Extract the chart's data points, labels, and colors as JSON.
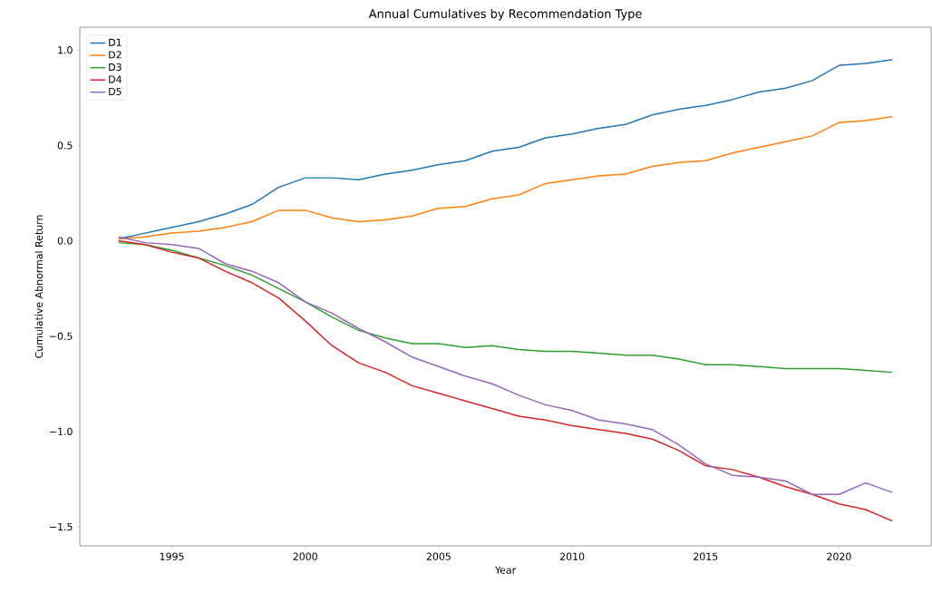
{
  "chart_data": {
    "type": "line",
    "title": "Annual Cumulatives by Recommendation Type",
    "xlabel": "Year",
    "ylabel": "Cumulative Abnormal Return",
    "x": [
      1993,
      1994,
      1995,
      1996,
      1997,
      1998,
      1999,
      2000,
      2001,
      2002,
      2003,
      2004,
      2005,
      2006,
      2007,
      2008,
      2009,
      2010,
      2011,
      2012,
      2013,
      2014,
      2015,
      2016,
      2017,
      2018,
      2019,
      2020,
      2021,
      2022
    ],
    "series": [
      {
        "name": "D1",
        "color": "#1f77b4",
        "values": [
          0.01,
          0.04,
          0.07,
          0.1,
          0.14,
          0.19,
          0.28,
          0.33,
          0.33,
          0.32,
          0.35,
          0.37,
          0.4,
          0.42,
          0.47,
          0.49,
          0.54,
          0.56,
          0.59,
          0.61,
          0.66,
          0.69,
          0.71,
          0.74,
          0.78,
          0.8,
          0.84,
          0.92,
          0.93,
          0.95
        ]
      },
      {
        "name": "D2",
        "color": "#ff7f0e",
        "values": [
          0.01,
          0.02,
          0.04,
          0.05,
          0.07,
          0.1,
          0.16,
          0.16,
          0.12,
          0.1,
          0.11,
          0.13,
          0.17,
          0.18,
          0.22,
          0.24,
          0.3,
          0.32,
          0.34,
          0.35,
          0.39,
          0.41,
          0.42,
          0.46,
          0.49,
          0.52,
          0.55,
          0.62,
          0.63,
          0.65
        ]
      },
      {
        "name": "D3",
        "color": "#2ca02c",
        "values": [
          -0.01,
          -0.02,
          -0.05,
          -0.09,
          -0.13,
          -0.18,
          -0.25,
          -0.32,
          -0.4,
          -0.47,
          -0.51,
          -0.54,
          -0.54,
          -0.56,
          -0.55,
          -0.57,
          -0.58,
          -0.58,
          -0.59,
          -0.6,
          -0.6,
          -0.62,
          -0.65,
          -0.65,
          -0.66,
          -0.67,
          -0.67,
          -0.67,
          -0.68,
          -0.69
        ]
      },
      {
        "name": "D4",
        "color": "#d62728",
        "values": [
          0.0,
          -0.02,
          -0.06,
          -0.09,
          -0.16,
          -0.22,
          -0.3,
          -0.42,
          -0.55,
          -0.64,
          -0.69,
          -0.76,
          -0.8,
          -0.84,
          -0.88,
          -0.92,
          -0.94,
          -0.97,
          -0.99,
          -1.01,
          -1.04,
          -1.1,
          -1.18,
          -1.2,
          -1.24,
          -1.29,
          -1.33,
          -1.38,
          -1.41,
          -1.47
        ]
      },
      {
        "name": "D5",
        "color": "#9467bd",
        "values": [
          0.02,
          -0.01,
          -0.02,
          -0.04,
          -0.12,
          -0.16,
          -0.22,
          -0.32,
          -0.38,
          -0.46,
          -0.53,
          -0.61,
          -0.66,
          -0.71,
          -0.75,
          -0.81,
          -0.86,
          -0.89,
          -0.94,
          -0.96,
          -0.99,
          -1.07,
          -1.17,
          -1.23,
          -1.24,
          -1.26,
          -1.33,
          -1.33,
          -1.27,
          -1.32
        ]
      }
    ],
    "xlim": [
      1991.55,
      2023.45
    ],
    "ylim": [
      -1.6,
      1.12
    ],
    "xticks": [
      1995,
      2000,
      2005,
      2010,
      2015,
      2020
    ],
    "yticks": [
      {
        "value": -1.5,
        "label": "−1.5"
      },
      {
        "value": -1.0,
        "label": "−1.0"
      },
      {
        "value": -0.5,
        "label": "−0.5"
      },
      {
        "value": 0.0,
        "label": "0.0"
      },
      {
        "value": 0.5,
        "label": "0.5"
      },
      {
        "value": 1.0,
        "label": "1.0"
      }
    ],
    "legend": "top left",
    "grid": false,
    "marker": "none",
    "line_style": "solid"
  }
}
